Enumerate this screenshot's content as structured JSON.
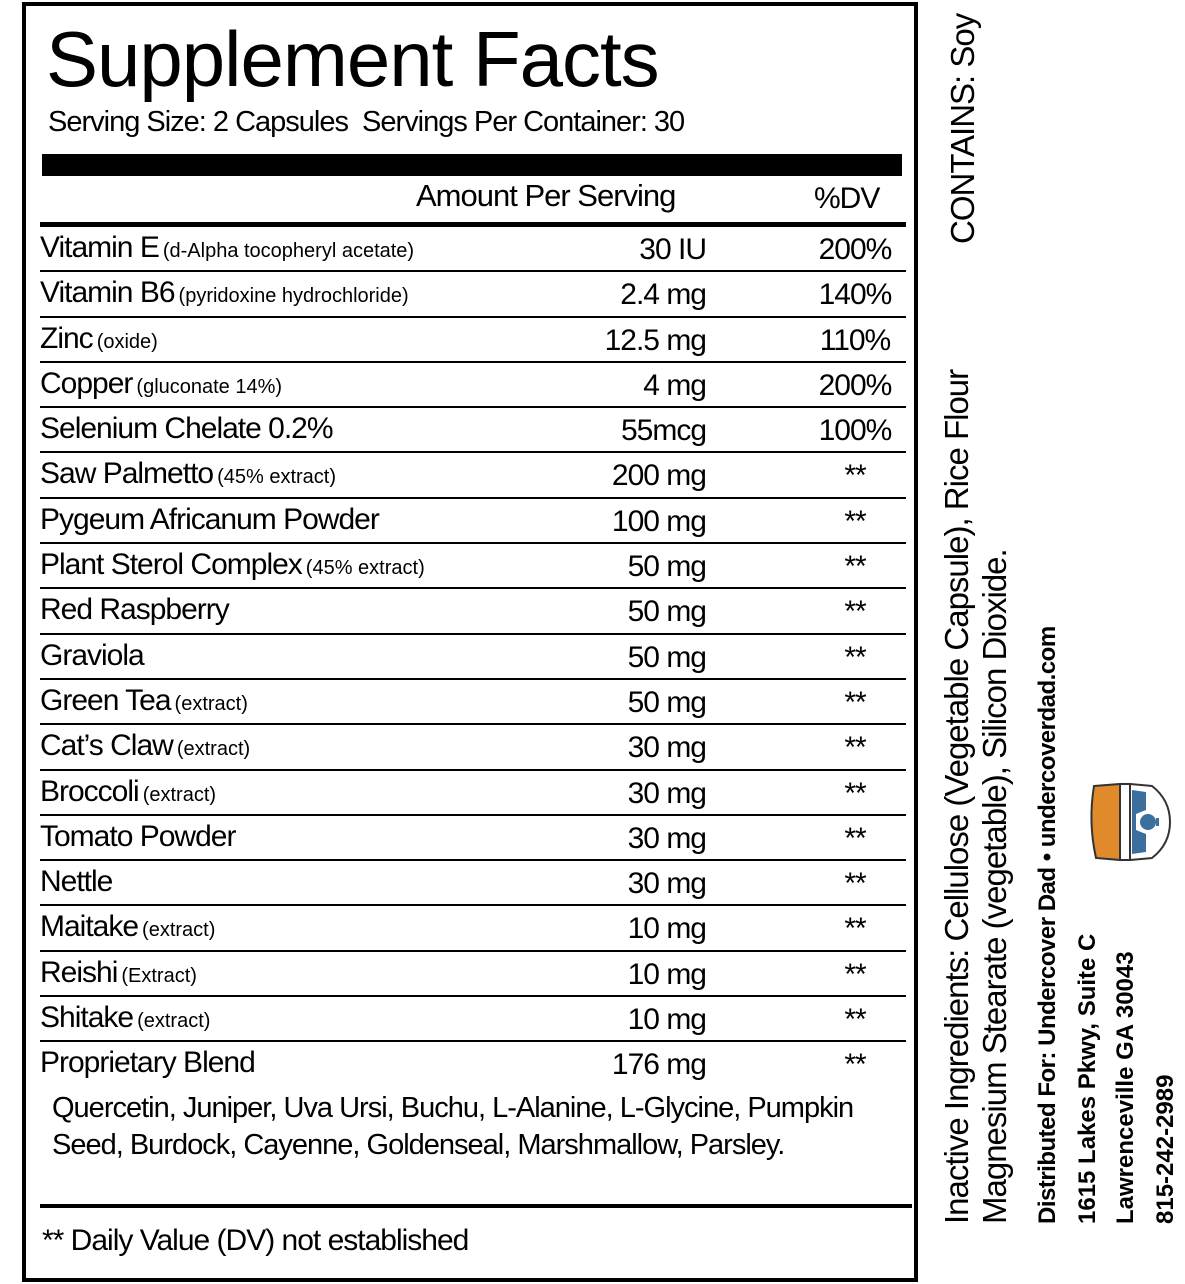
{
  "title": "Supplement Facts",
  "serving_size": "Serving Size: 2 Capsules",
  "servings_per_container": "Servings Per Container: 30",
  "header": {
    "amount": "Amount Per Serving",
    "dv": "%DV"
  },
  "rows": [
    {
      "name": "Vitamin E",
      "note": "(d-Alpha tocopheryl acetate)",
      "amount": "30 IU",
      "dv": "200%"
    },
    {
      "name": "Vitamin B6",
      "note": "(pyridoxine hydrochloride)",
      "amount": "2.4 mg",
      "dv": "140%"
    },
    {
      "name": "Zinc",
      "note": "(oxide)",
      "amount": "12.5 mg",
      "dv": "110%"
    },
    {
      "name": "Copper",
      "note": "(gluconate 14%)",
      "amount": "4 mg",
      "dv": "200%"
    },
    {
      "name": "Selenium Chelate 0.2%",
      "note": "",
      "amount": "55mcg",
      "dv": "100%"
    },
    {
      "name": "Saw Palmetto",
      "note": "(45% extract)",
      "amount": "200 mg",
      "dv": "**"
    },
    {
      "name": "Pygeum Africanum Powder",
      "note": "",
      "amount": "100 mg",
      "dv": "**"
    },
    {
      "name": "Plant Sterol Complex",
      "note": "(45% extract)",
      "amount": "50 mg",
      "dv": "**"
    },
    {
      "name": "Red Raspberry",
      "note": "",
      "amount": "50 mg",
      "dv": "**"
    },
    {
      "name": "Graviola",
      "note": "",
      "amount": "50 mg",
      "dv": "**"
    },
    {
      "name": "Green Tea",
      "note": "(extract)",
      "amount": "50 mg",
      "dv": "**"
    },
    {
      "name": "Cat’s Claw",
      "note": "(extract)",
      "amount": "30 mg",
      "dv": "**"
    },
    {
      "name": "Broccoli",
      "note": "(extract)",
      "amount": "30 mg",
      "dv": "**"
    },
    {
      "name": "Tomato Powder",
      "note": "",
      "amount": "30 mg",
      "dv": "**"
    },
    {
      "name": "Nettle",
      "note": "",
      "amount": "30 mg",
      "dv": "**"
    },
    {
      "name": "Maitake",
      "note": "(extract)",
      "amount": "10 mg",
      "dv": "**"
    },
    {
      "name": "Reishi",
      "note": "(Extract)",
      "amount": "10 mg",
      "dv": "**"
    },
    {
      "name": "Shitake",
      "note": "(extract)",
      "amount": "10 mg",
      "dv": "**"
    },
    {
      "name": "Proprietary Blend",
      "note": "",
      "amount": "176 mg",
      "dv": "**"
    }
  ],
  "blend_ingredients": "Quercetin, Juniper, Uva Ursi, Buchu, L-Alanine, L-Glycine, Pumpkin Seed, Burdock, Cayenne, Goldenseal, Marshmallow, Parsley.",
  "footnote": "** Daily Value (DV) not established",
  "side": {
    "contains": "CONTAINS: Soy",
    "inactive_line1": "Inactive Ingredients: Cellulose (Vegetable Capsule), Rice Flour",
    "inactive_line2": "Magnesium Stearate (vegetable), Silicon Dioxide.",
    "distributed": "Distributed For: Undercover Dad  •  undercoverdad.com",
    "address1": "1615 Lakes  Pkwy, Suite C",
    "address2": "Lawrenceville GA 30043",
    "phone": "815-242-2989",
    "logo_colors": {
      "orange": "#e08a2c",
      "blue": "#3a6f9e"
    }
  }
}
